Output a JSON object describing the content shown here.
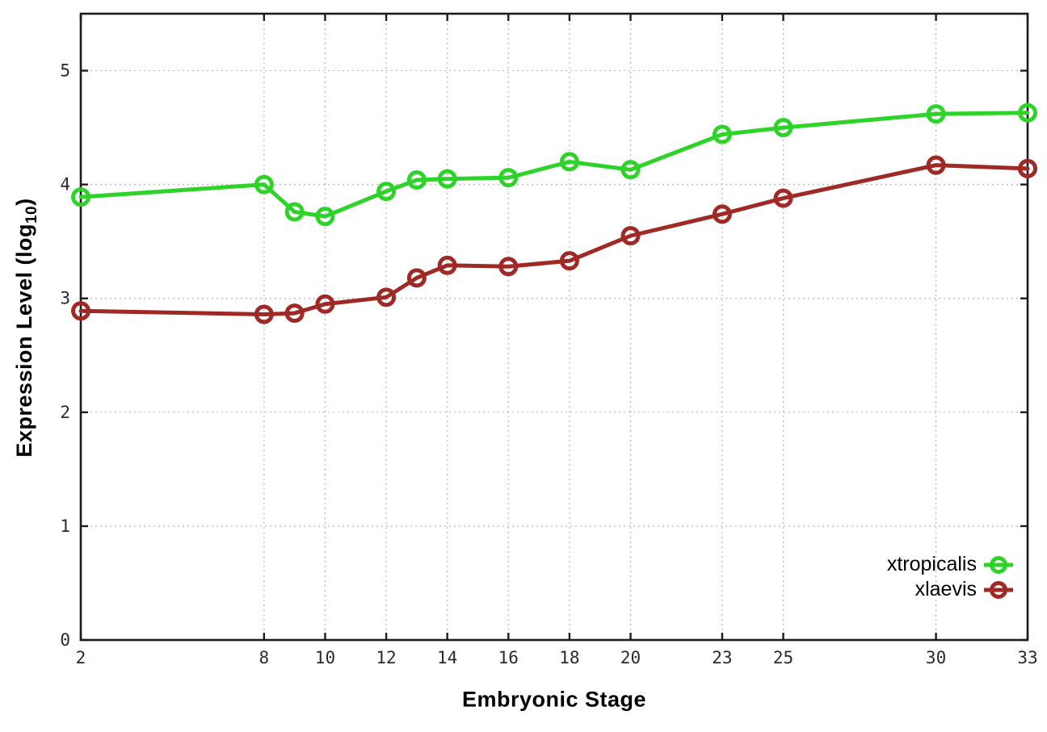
{
  "chart_data": {
    "type": "line",
    "title": "",
    "xlabel": "Embryonic Stage",
    "ylabel": "Expression Level (log10)",
    "ylabel_parts": {
      "pre": "Expression Level (log",
      "sub": "10",
      "post": ")"
    },
    "x": [
      2,
      8,
      9,
      10,
      12,
      13,
      14,
      16,
      18,
      20,
      23,
      25,
      30,
      33
    ],
    "series": [
      {
        "name": "xtropicalis",
        "color": "#2ed32a",
        "values": [
          3.89,
          4.0,
          3.76,
          3.72,
          3.94,
          4.04,
          4.05,
          4.06,
          4.2,
          4.13,
          4.44,
          4.5,
          4.62,
          4.63
        ]
      },
      {
        "name": "xlaevis",
        "color": "#9f2a25",
        "values": [
          2.89,
          2.86,
          2.87,
          2.95,
          3.01,
          3.18,
          3.29,
          3.28,
          3.33,
          3.55,
          3.74,
          3.88,
          4.17,
          4.14
        ]
      }
    ],
    "xlim": [
      2,
      33
    ],
    "ylim": [
      0,
      5.5
    ],
    "xticks": [
      2,
      8,
      10,
      12,
      14,
      16,
      18,
      20,
      23,
      25,
      30,
      33
    ],
    "yticks": [
      0,
      1,
      2,
      3,
      4,
      5
    ],
    "grid": true,
    "legend_position": "bottom-right",
    "axis_color": "#1c1c1c",
    "tick_label_color": "#2a2a2a",
    "grid_color": "#b8b8b8",
    "background": "#ffffff",
    "marker": "open-circle"
  }
}
